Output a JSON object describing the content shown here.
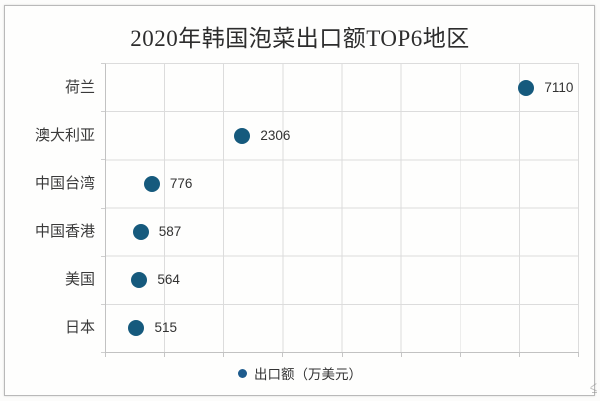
{
  "title": "2020年韩国泡菜出口额TOP6地区",
  "legend": {
    "label": "出口额（万美元）",
    "marker_color": "#1e5b8d"
  },
  "chart_data": {
    "type": "scatter",
    "orientation": "horizontal-category",
    "title": "2020年韩国泡菜出口额TOP6地区",
    "categories": [
      "荷兰",
      "澳大利亚",
      "中国台湾",
      "中国香港",
      "美国",
      "日本"
    ],
    "series": [
      {
        "name": "出口额（万美元）",
        "values": [
          7110,
          2306,
          776,
          587,
          564,
          515
        ]
      }
    ],
    "xlim": [
      0,
      8000
    ],
    "x_gridline_step": 1000,
    "grid": true,
    "legend_position": "bottom",
    "point_color": "#165a7d",
    "value_label_color": "#323232",
    "gridline_color": "#dcdcdc",
    "axis_color": "#c2c2c2"
  }
}
